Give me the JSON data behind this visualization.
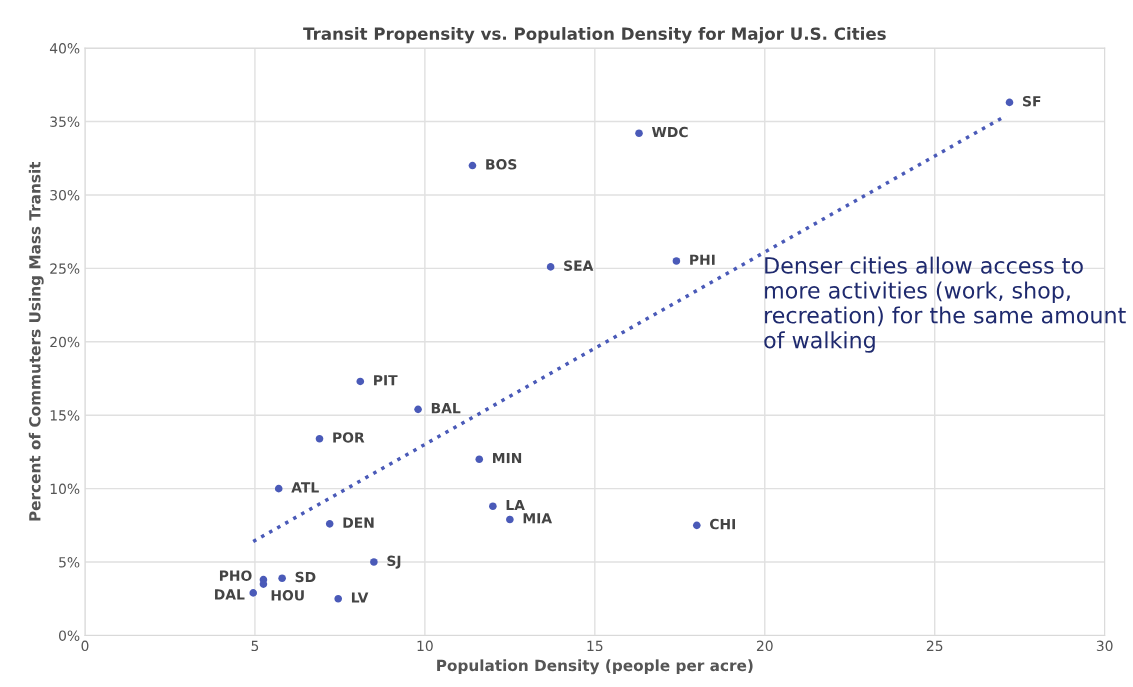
{
  "chart_data": {
    "type": "scatter",
    "title": "Transit Propensity vs. Population Density for Major U.S. Cities",
    "xlabel": "Population Density (people per acre)",
    "ylabel": "Percent of Commuters Using Mass Transit",
    "xlim": [
      0,
      30
    ],
    "xticks": [
      0,
      5,
      10,
      15,
      20,
      25,
      30
    ],
    "ylim": [
      0,
      40
    ],
    "yticks": [
      {
        "value": 0,
        "label": "0%"
      },
      {
        "value": 5,
        "label": "5%"
      },
      {
        "value": 10,
        "label": "10%"
      },
      {
        "value": 15,
        "label": "15%"
      },
      {
        "value": 20,
        "label": "20%"
      },
      {
        "value": 25,
        "label": "25%"
      },
      {
        "value": 30,
        "label": "30%"
      },
      {
        "value": 35,
        "label": "35%"
      },
      {
        "value": 40,
        "label": "40%"
      }
    ],
    "grid": true,
    "legend": false,
    "marker": "circle",
    "series": [
      {
        "color": "#4a5ab8",
        "x": [
          27.2,
          16.3,
          11.4,
          13.7,
          17.4,
          8.1,
          9.8,
          6.9,
          11.6,
          5.7,
          12.0,
          12.5,
          7.2,
          18.0,
          8.5,
          5.8,
          5.25,
          5.25,
          4.95,
          7.45
        ],
        "values": [
          36.3,
          34.2,
          32.0,
          25.1,
          25.5,
          17.3,
          15.4,
          13.4,
          12.0,
          10.0,
          8.8,
          7.9,
          7.6,
          7.5,
          5.0,
          3.9,
          3.8,
          3.5,
          2.9,
          2.5
        ]
      },
      {
        "type": "line",
        "color": "#4a5ab8",
        "line_style": "dotted",
        "marker": "none",
        "x": [
          4.95,
          27.1
        ],
        "values": [
          6.4,
          35.4
        ]
      }
    ],
    "annotations": [
      {
        "text": "SF",
        "x": 27.2,
        "y": 36.3
      },
      {
        "text": "WDC",
        "x": 16.3,
        "y": 34.2
      },
      {
        "text": "BOS",
        "x": 11.4,
        "y": 32.0
      },
      {
        "text": "SEA",
        "x": 13.7,
        "y": 25.1
      },
      {
        "text": "PHI",
        "x": 17.4,
        "y": 25.5
      },
      {
        "text": "PIT",
        "x": 8.1,
        "y": 17.3
      },
      {
        "text": "BAL",
        "x": 9.8,
        "y": 15.4
      },
      {
        "text": "POR",
        "x": 6.9,
        "y": 13.4
      },
      {
        "text": "MIN",
        "x": 11.6,
        "y": 12.0
      },
      {
        "text": "ATL",
        "x": 5.7,
        "y": 10.0
      },
      {
        "text": "LA",
        "x": 12.0,
        "y": 8.8
      },
      {
        "text": "MIA",
        "x": 12.5,
        "y": 7.9
      },
      {
        "text": "DEN",
        "x": 7.2,
        "y": 7.6
      },
      {
        "text": "CHI",
        "x": 18.0,
        "y": 7.5
      },
      {
        "text": "SJ",
        "x": 8.5,
        "y": 5.0
      },
      {
        "text": "SD",
        "x": 5.8,
        "y": 3.9
      },
      {
        "text": "PHO",
        "x": 5.25,
        "y": 3.8
      },
      {
        "text": "HOU",
        "x": 5.25,
        "y": 3.5
      },
      {
        "text": "DAL",
        "x": 4.95,
        "y": 2.9
      },
      {
        "text": "LV",
        "x": 7.45,
        "y": 2.5
      },
      "Denser cities allow access to more activities (work, shop, recreation) for the same amount of walking"
    ]
  }
}
